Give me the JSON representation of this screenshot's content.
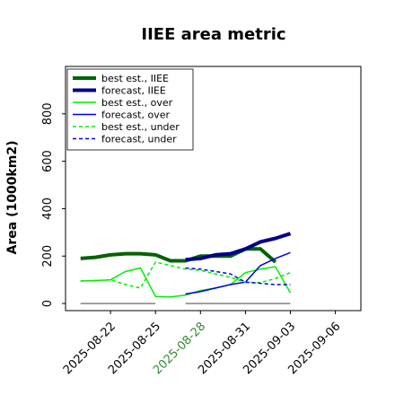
{
  "chart_data": {
    "type": "line",
    "title": "IIEE area metric",
    "ylabel": "Area (1000km2)",
    "xlabel": "",
    "ylim": [
      -30,
      1000
    ],
    "yticks": [
      0,
      200,
      400,
      600,
      800
    ],
    "xticks": [
      {
        "value": 1,
        "label": "2025-08-22",
        "color": "#000000"
      },
      {
        "value": 4,
        "label": "2025-08-25",
        "color": "#000000"
      },
      {
        "value": 7,
        "label": "2025-08-28",
        "color": "#2e8b2e"
      },
      {
        "value": 10,
        "label": "2025-08-31",
        "color": "#000000"
      },
      {
        "value": 13,
        "label": "2025-09-03",
        "color": "#000000"
      },
      {
        "value": 16,
        "label": "2025-09-06",
        "color": "#000000"
      }
    ],
    "xlim": [
      -2,
      17.7
    ],
    "grid": false,
    "legend_position": "top-left",
    "series": [
      {
        "name": "best est., IIEE",
        "color": "#006400",
        "width": 4,
        "dash": "",
        "x": [
          -1,
          0,
          1,
          2,
          3,
          4,
          5,
          6,
          7,
          8,
          9,
          10,
          11,
          12,
          13
        ],
        "y": [
          190,
          195,
          205,
          210,
          210,
          205,
          180,
          180,
          200,
          200,
          200,
          230,
          230,
          175,
          null
        ]
      },
      {
        "name": "forecast, IIEE",
        "color": "#00008b",
        "width": 4,
        "dash": "",
        "x": [
          6,
          7,
          8,
          9,
          10,
          11,
          12,
          13
        ],
        "y": [
          185,
          190,
          205,
          210,
          230,
          260,
          275,
          295
        ]
      },
      {
        "name": "best est., over",
        "color": "#00ee00",
        "width": 1.5,
        "dash": "",
        "x": [
          -1,
          0,
          1,
          2,
          3,
          4,
          5,
          6,
          7,
          8,
          9,
          10,
          11,
          12,
          13
        ],
        "y": [
          95,
          97,
          100,
          135,
          150,
          30,
          28,
          35,
          55,
          65,
          80,
          130,
          145,
          155,
          45
        ]
      },
      {
        "name": "forecast, over",
        "color": "#0000ee",
        "width": 1.5,
        "dash": "",
        "x": [
          6,
          7,
          8,
          9,
          10,
          11,
          12,
          13
        ],
        "y": [
          40,
          50,
          65,
          80,
          90,
          160,
          190,
          215
        ]
      },
      {
        "name": "best est., under",
        "color": "#00ee00",
        "width": 1.5,
        "dash": "4,3",
        "x": [
          -1,
          0,
          1,
          2,
          3,
          4,
          5,
          6,
          7,
          8,
          9,
          10,
          11,
          12,
          13
        ],
        "y": [
          95,
          97,
          100,
          80,
          65,
          175,
          160,
          145,
          140,
          125,
          110,
          90,
          88,
          105,
          130
        ]
      },
      {
        "name": "forecast, under",
        "color": "#0000ee",
        "width": 1.5,
        "dash": "4,3",
        "x": [
          6,
          7,
          8,
          9,
          10,
          11,
          12,
          13
        ],
        "y": [
          150,
          145,
          135,
          125,
          90,
          85,
          80,
          80
        ]
      }
    ],
    "gray_bars": [
      {
        "x": [
          -1,
          4
        ],
        "y": 0,
        "color": "#808080"
      },
      {
        "x": [
          6,
          13
        ],
        "y": 0,
        "color": "#808080"
      }
    ]
  }
}
